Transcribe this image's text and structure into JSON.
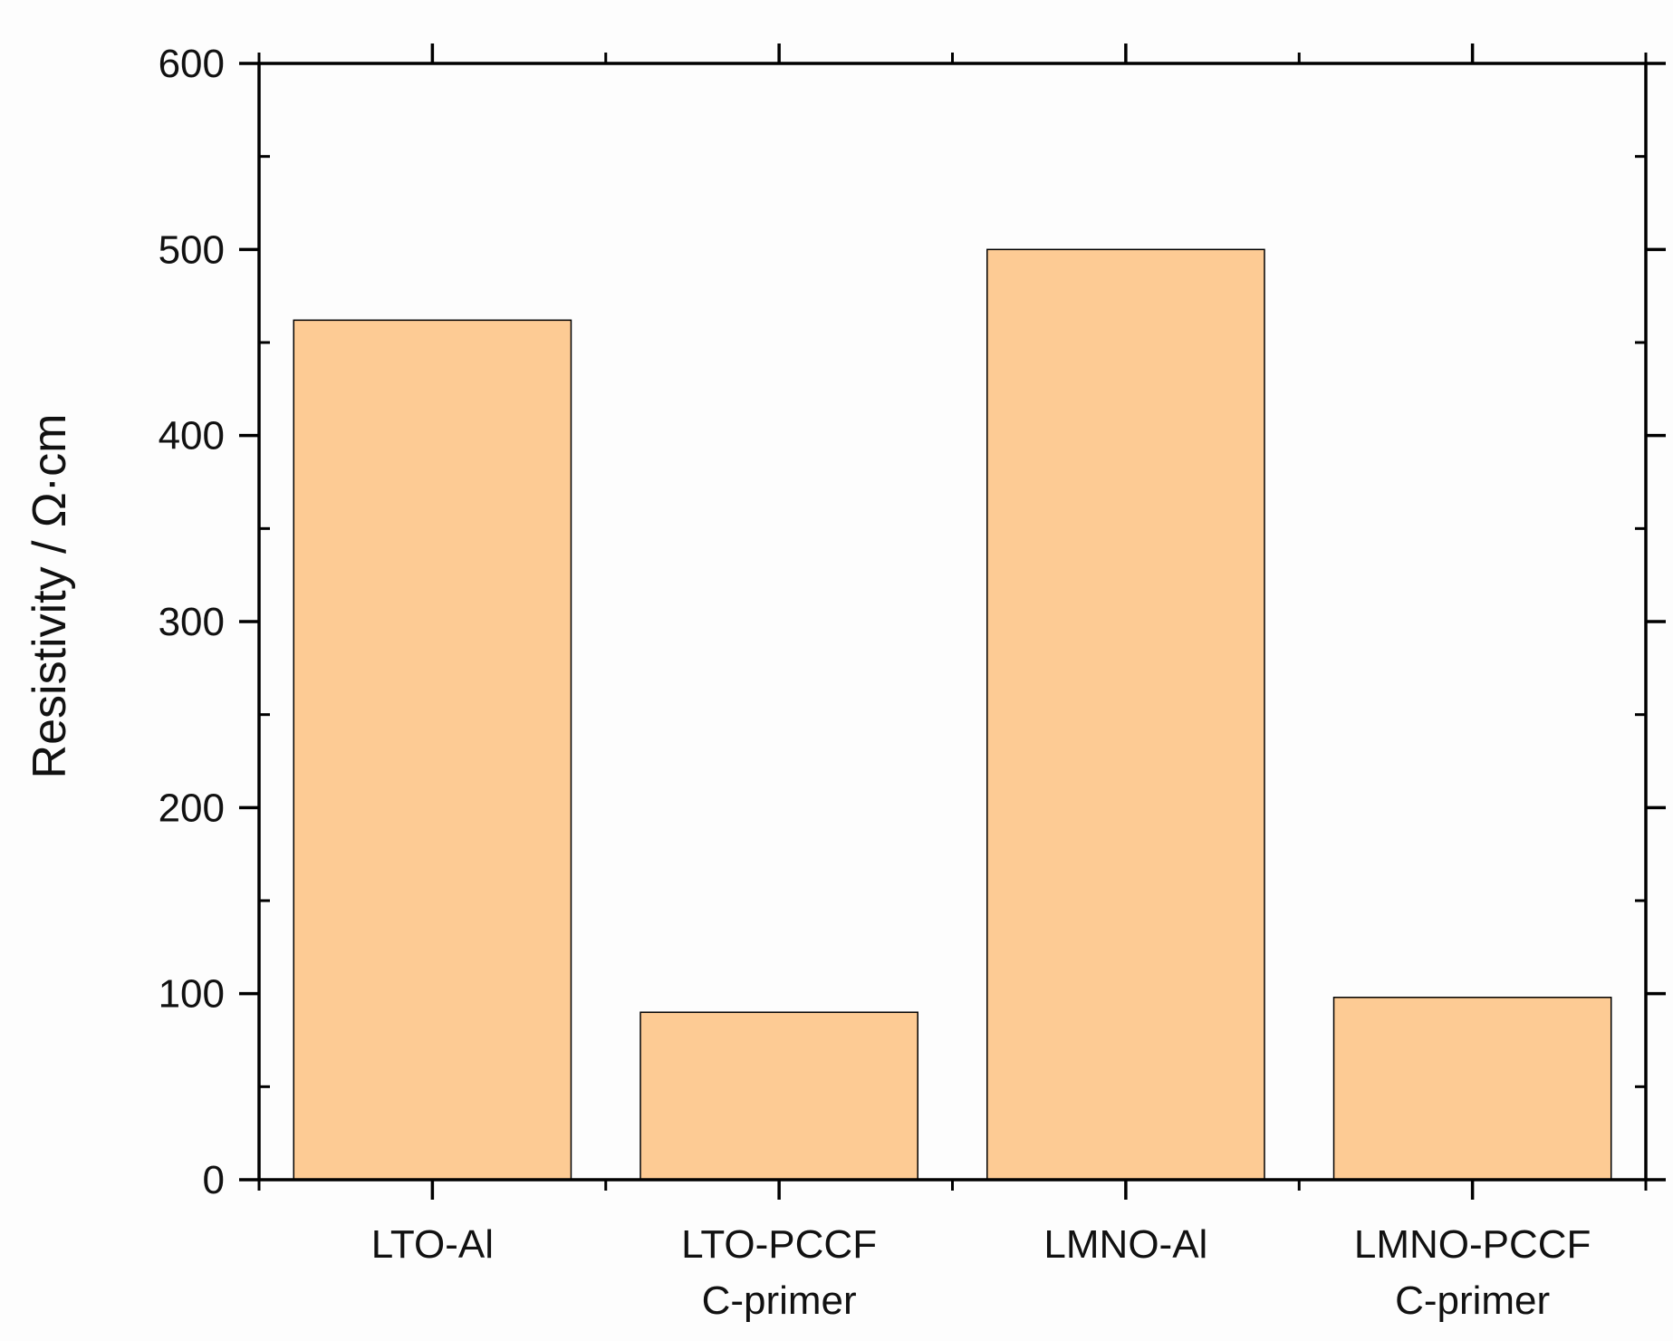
{
  "chart_data": {
    "type": "bar",
    "title": "",
    "xlabel": "",
    "ylabel": "Resistivity / Ω·cm",
    "categories": [
      [
        "LTO-Al"
      ],
      [
        "LTO-PCCF",
        "C-primer"
      ],
      [
        "LMNO-Al"
      ],
      [
        "LMNO-PCCF",
        "C-primer"
      ]
    ],
    "values": [
      462,
      90,
      500,
      98
    ],
    "ylim": [
      0,
      600
    ],
    "yticks": [
      0,
      100,
      200,
      300,
      400,
      500,
      600
    ],
    "grid": false,
    "legend": "none",
    "bar_color": "#fdcb94",
    "bar_edge_color": "#000000"
  }
}
